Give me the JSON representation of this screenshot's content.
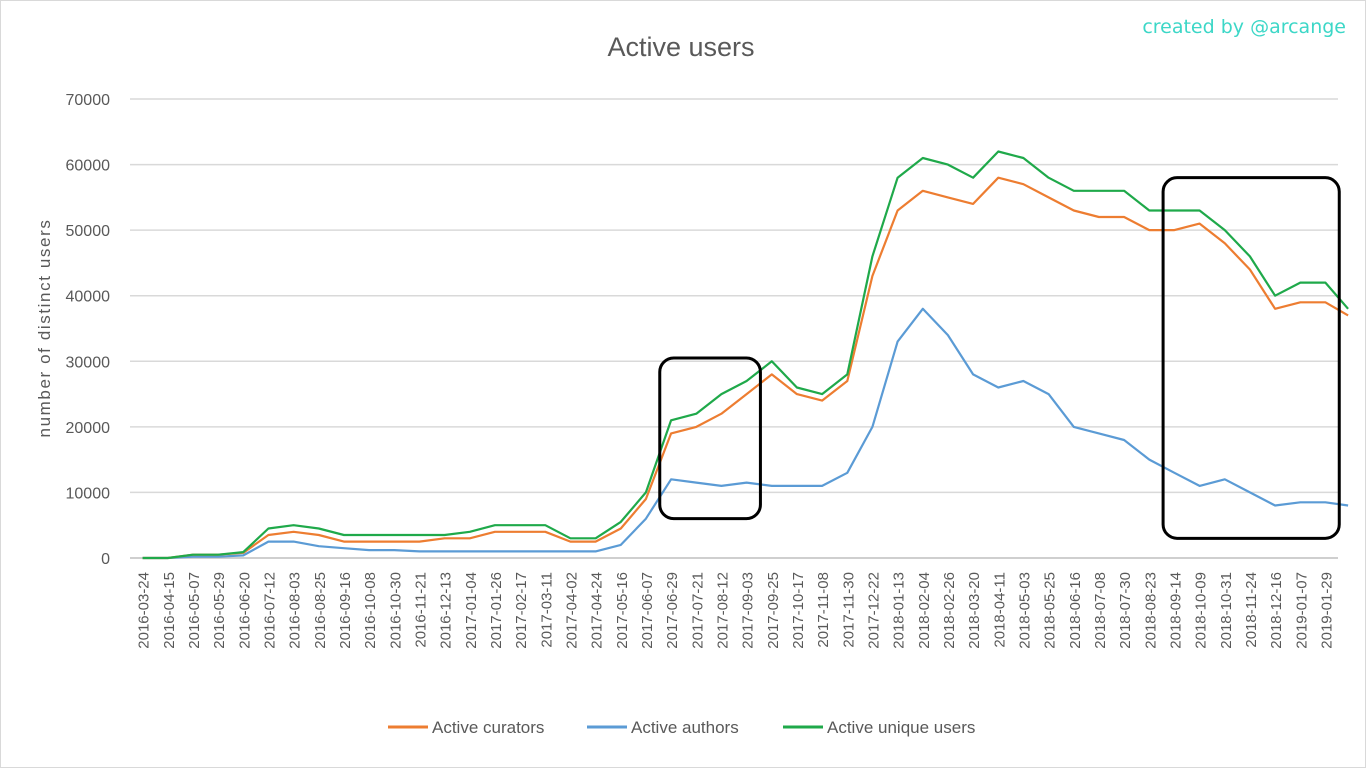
{
  "credit": "created by @arcange",
  "colors": {
    "curators": "#ED7D31",
    "authors": "#5B9BD5",
    "unique": "#1FA94A",
    "credit": "#3CD7C7",
    "grid": "#D9D9D9",
    "text": "#595959",
    "highlight": "#000000"
  },
  "chart_data": {
    "type": "line",
    "title": "Active users",
    "xlabel": "",
    "ylabel": "number of distinct users",
    "ylim": [
      0,
      70000
    ],
    "yticks": [
      "0",
      "10000",
      "20000",
      "30000",
      "40000",
      "50000",
      "60000",
      "70000"
    ],
    "grid": true,
    "legend": "bottom",
    "categories": [
      "2016-03-24",
      "2016-04-15",
      "2016-05-07",
      "2016-05-29",
      "2016-06-20",
      "2016-07-12",
      "2016-08-03",
      "2016-08-25",
      "2016-09-16",
      "2016-10-08",
      "2016-10-30",
      "2016-11-21",
      "2016-12-13",
      "2017-01-04",
      "2017-01-26",
      "2017-02-17",
      "2017-03-11",
      "2017-04-02",
      "2017-04-24",
      "2017-05-16",
      "2017-06-07",
      "2017-06-29",
      "2017-07-21",
      "2017-08-12",
      "2017-09-03",
      "2017-09-25",
      "2017-10-17",
      "2017-11-08",
      "2017-11-30",
      "2017-12-22",
      "2018-01-13",
      "2018-02-04",
      "2018-02-26",
      "2018-03-20",
      "2018-04-11",
      "2018-05-03",
      "2018-05-25",
      "2018-06-16",
      "2018-07-08",
      "2018-07-30",
      "2018-08-23",
      "2018-09-14",
      "2018-10-09",
      "2018-10-31",
      "2018-11-24",
      "2018-12-16",
      "2019-01-07",
      "2019-01-29"
    ],
    "series": [
      {
        "name": "Active curators",
        "values": [
          0,
          0,
          500,
          500,
          800,
          3500,
          4000,
          3500,
          2500,
          2500,
          2500,
          2500,
          3000,
          3000,
          4000,
          4000,
          4000,
          2500,
          2500,
          4500,
          9000,
          19000,
          20000,
          22000,
          25000,
          28000,
          25000,
          24000,
          27000,
          43000,
          53000,
          56000,
          55000,
          54000,
          58000,
          57000,
          55000,
          53000,
          52000,
          52000,
          50000,
          50000,
          51000,
          48000,
          44000,
          38000,
          39000,
          39000
        ],
        "extra": [
          {
            "x": 48.4,
            "v": 37000
          }
        ]
      },
      {
        "name": "Active authors",
        "values": [
          0,
          0,
          200,
          200,
          400,
          2500,
          2500,
          1800,
          1500,
          1200,
          1200,
          1000,
          1000,
          1000,
          1000,
          1000,
          1000,
          1000,
          1000,
          2000,
          6000,
          12000,
          11500,
          11000,
          11500,
          11000,
          11000,
          11000,
          13000,
          20000,
          33000,
          38000,
          34000,
          28000,
          26000,
          27000,
          25000,
          20000,
          19000,
          18000,
          15000,
          13000,
          11000,
          12000,
          10000,
          8000,
          8500,
          8500
        ],
        "extra": [
          {
            "x": 48.4,
            "v": 8000
          }
        ]
      },
      {
        "name": "Active unique users",
        "values": [
          0,
          0,
          500,
          500,
          900,
          4500,
          5000,
          4500,
          3500,
          3500,
          3500,
          3500,
          3500,
          4000,
          5000,
          5000,
          5000,
          3000,
          3000,
          5500,
          10000,
          21000,
          22000,
          25000,
          27000,
          30000,
          26000,
          25000,
          28000,
          46000,
          58000,
          61000,
          60000,
          58000,
          62000,
          61000,
          58000,
          56000,
          56000,
          56000,
          53000,
          53000,
          53000,
          50000,
          46000,
          40000,
          42000,
          42000
        ],
        "extra": [
          {
            "x": 48.4,
            "v": 38000
          }
        ]
      }
    ],
    "annotations": [
      {
        "type": "box",
        "x_from": "2017-06-29",
        "x_to": "2017-09-03",
        "y_from": 6000,
        "y_to": 30500
      },
      {
        "type": "box",
        "x_from": "2018-09-14",
        "x_to": "2019-01-29",
        "y_from": 3000,
        "y_to": 58000
      }
    ]
  }
}
